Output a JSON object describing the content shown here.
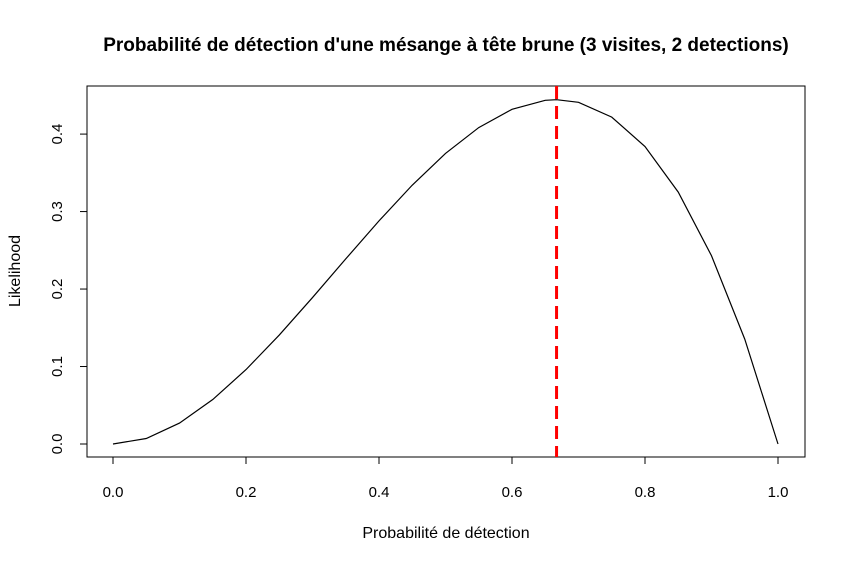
{
  "chart_data": {
    "type": "line",
    "title": "Probabilité de détection d'une mésange à tête brune (3 visites, 2 detections)",
    "xlabel": "Probabilité de détection",
    "ylabel": "Likelihood",
    "xlim": [
      0.0,
      1.0
    ],
    "ylim": [
      0.0,
      0.444
    ],
    "x_ticks": [
      0.0,
      0.2,
      0.4,
      0.6,
      0.8,
      1.0
    ],
    "x_tick_labels": [
      "0.0",
      "0.2",
      "0.4",
      "0.6",
      "0.8",
      "1.0"
    ],
    "y_ticks": [
      0.0,
      0.1,
      0.2,
      0.3,
      0.4
    ],
    "y_tick_labels": [
      "0.0",
      "0.1",
      "0.2",
      "0.3",
      "0.4"
    ],
    "grid": false,
    "series": [
      {
        "color": "#000000",
        "x": [
          0.0,
          0.05,
          0.1,
          0.15,
          0.2,
          0.25,
          0.3,
          0.35,
          0.4,
          0.45,
          0.5,
          0.55,
          0.6,
          0.65,
          0.667,
          0.7,
          0.75,
          0.8,
          0.85,
          0.9,
          0.95,
          1.0
        ],
        "y": [
          0.0,
          0.0071,
          0.027,
          0.0574,
          0.096,
          0.1406,
          0.189,
          0.2389,
          0.288,
          0.3341,
          0.375,
          0.4084,
          0.432,
          0.4436,
          0.4444,
          0.441,
          0.4219,
          0.384,
          0.3251,
          0.243,
          0.1354,
          0.0
        ]
      }
    ],
    "reference_line": {
      "x": 0.667,
      "color": "#ff0000",
      "style": "dashed"
    }
  }
}
